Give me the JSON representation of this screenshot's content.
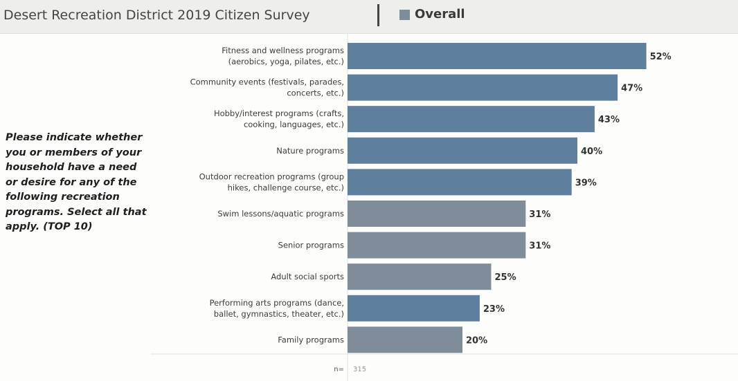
{
  "header": {
    "title": "Desert Recreation District 2019 Citizen Survey",
    "legend_label": "Overall"
  },
  "question_text": "Please indicate whether you or members of your household have a need or desire for any of the following recreation programs. Select all that apply. (TOP 10)",
  "colors": {
    "bar_blue": "#5f7f9e",
    "bar_gray": "#7f8c99",
    "legend": "#7f8c99"
  },
  "chart_data": {
    "type": "bar",
    "orientation": "horizontal",
    "title": "Desert Recreation District 2019 Citizen Survey",
    "legend": [
      "Overall"
    ],
    "categories": [
      [
        "Fitness and wellness programs",
        "(aerobics, yoga, pilates, etc.)"
      ],
      [
        "Community events (festivals, parades,",
        "concerts, etc.)"
      ],
      [
        "Hobby/interest programs (crafts,",
        "cooking, languages, etc.)"
      ],
      [
        "Nature programs"
      ],
      [
        "Outdoor recreation programs (group",
        "hikes, challenge course, etc.)"
      ],
      [
        "Swim lessons/aquatic programs"
      ],
      [
        "Senior programs"
      ],
      [
        "Adult social sports"
      ],
      [
        "Performing arts programs (dance,",
        "ballet, gymnastics, theater, etc.)"
      ],
      [
        "Family programs"
      ]
    ],
    "values": [
      52,
      47,
      43,
      40,
      39,
      31,
      31,
      25,
      23,
      20
    ],
    "value_labels": [
      "52%",
      "47%",
      "43%",
      "40%",
      "39%",
      "31%",
      "31%",
      "25%",
      "23%",
      "20%"
    ],
    "bar_colors": [
      "bar_blue",
      "bar_blue",
      "bar_blue",
      "bar_blue",
      "bar_blue",
      "bar_gray",
      "bar_gray",
      "bar_gray",
      "bar_blue",
      "bar_gray"
    ],
    "xlim": [
      0,
      58
    ],
    "n_label": "n=",
    "n_value": "315"
  }
}
